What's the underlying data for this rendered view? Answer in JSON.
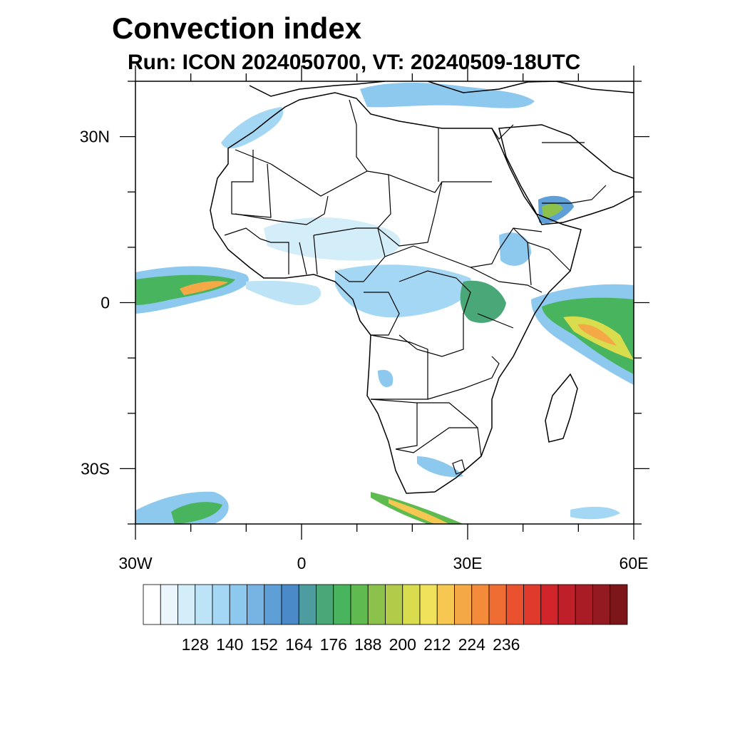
{
  "title": "Convection index",
  "subtitle": "Run: ICON 2024050700,  VT: 20240509-18UTC",
  "map": {
    "lon_range": [
      -30,
      60
    ],
    "lat_range": [
      -40,
      40
    ],
    "lat_ticks": [
      {
        "value": 30,
        "label": "30N"
      },
      {
        "value": 0,
        "label": "0"
      },
      {
        "value": -30,
        "label": "30S"
      }
    ],
    "lon_ticks": [
      {
        "value": -30,
        "label": "30W"
      },
      {
        "value": 0,
        "label": "0"
      },
      {
        "value": 30,
        "label": "30E"
      },
      {
        "value": 60,
        "label": "60E"
      }
    ]
  },
  "colorbar": {
    "colors": [
      "#ffffff",
      "#eaf6fc",
      "#d3edf9",
      "#bde3f6",
      "#a3d7f3",
      "#8dc8ee",
      "#77b4e4",
      "#5f9fd7",
      "#4b8ac8",
      "#4d9ca0",
      "#4aa778",
      "#49b45e",
      "#5fba4f",
      "#8cc14b",
      "#b2cc4a",
      "#d8dc4d",
      "#f0e25a",
      "#f6c751",
      "#f5a946",
      "#f38b3b",
      "#ef6d33",
      "#ea522f",
      "#e03a2d",
      "#d1252b",
      "#be1f29",
      "#a91c25",
      "#931a20",
      "#7d161b"
    ],
    "labels": [
      "128",
      "140",
      "152",
      "164",
      "176",
      "188",
      "200",
      "212",
      "224",
      "236"
    ]
  }
}
